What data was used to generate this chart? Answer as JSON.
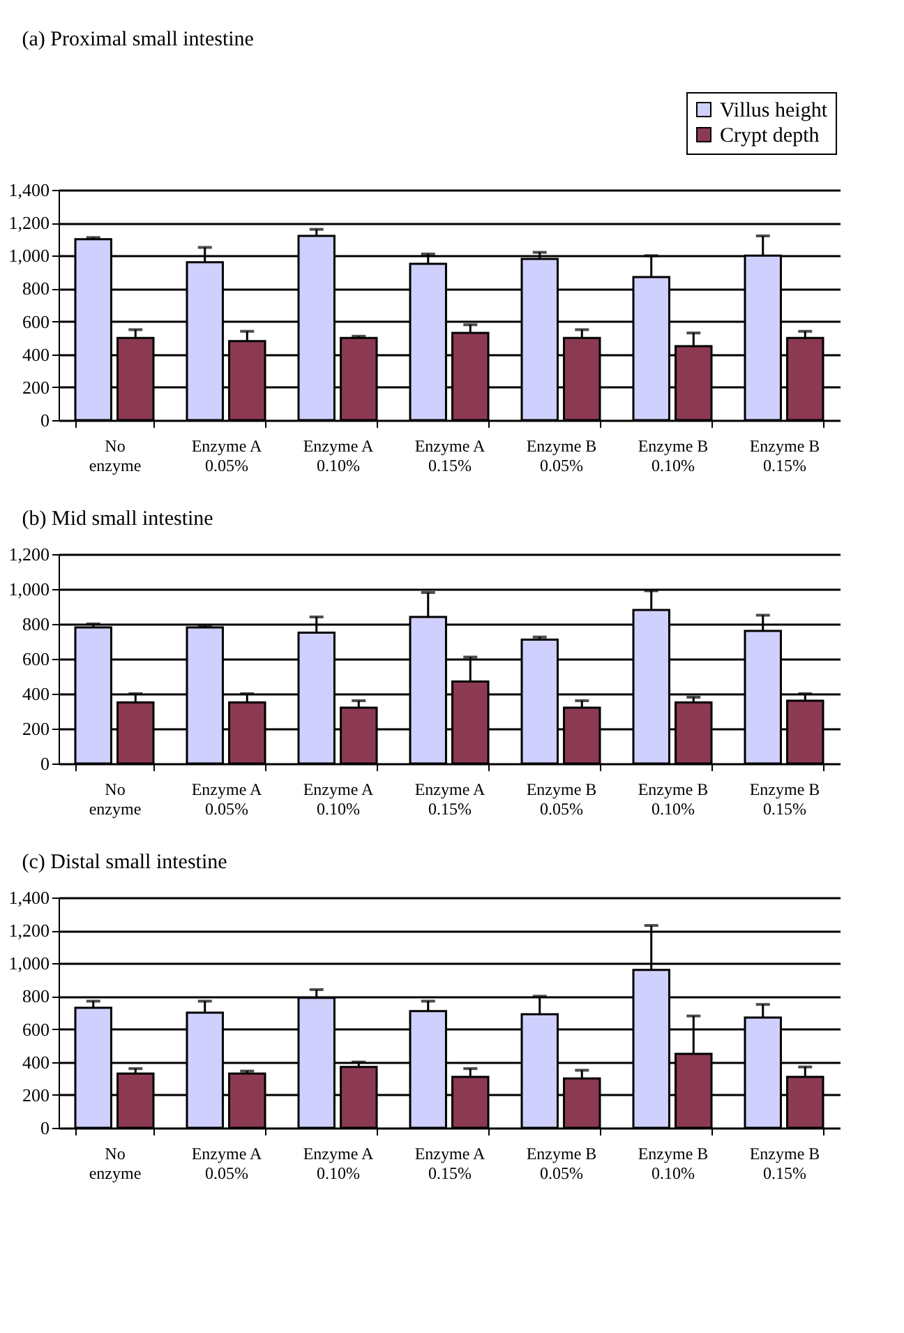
{
  "chart_data": [
    {
      "type": "bar",
      "title": "(a) Proximal small intestine",
      "categories": [
        "No enzyme",
        "Enzyme A 0.05%",
        "Enzyme A 0.10%",
        "Enzyme A 0.15%",
        "Enzyme B 0.05%",
        "Enzyme B 0.10%",
        "Enzyme B 0.15%"
      ],
      "series": [
        {
          "name": "Villus height",
          "color": "#d0d0ff",
          "values": [
            1100,
            960,
            1120,
            950,
            980,
            870,
            1000
          ],
          "errors": [
            [
              1100,
              1110
            ],
            [
              960,
              1050
            ],
            [
              1120,
              1160
            ],
            [
              950,
              1010
            ],
            [
              980,
              1020
            ],
            [
              870,
              1000
            ],
            [
              1000,
              1120
            ]
          ]
        },
        {
          "name": "Crypt depth",
          "color": "#8b3a52",
          "values": [
            500,
            480,
            500,
            530,
            500,
            450,
            500
          ],
          "errors": [
            [
              500,
              550
            ],
            [
              480,
              540
            ],
            [
              500,
              510
            ],
            [
              530,
              580
            ],
            [
              500,
              550
            ],
            [
              450,
              530
            ],
            [
              500,
              540
            ]
          ]
        }
      ],
      "ylim": [
        0,
        1400
      ],
      "yticks": [
        {
          "value": 0,
          "label": "0"
        },
        {
          "value": 200,
          "label": "200"
        },
        {
          "value": 400,
          "label": "400"
        },
        {
          "value": 600,
          "label": "600"
        },
        {
          "value": 800,
          "label": "800"
        },
        {
          "value": 1000,
          "label": "1,000"
        },
        {
          "value": 1200,
          "label": "1,200"
        },
        {
          "value": 1400,
          "label": "1,400"
        }
      ],
      "grid": "y",
      "legend": "top right"
    },
    {
      "type": "bar",
      "title": "(b) Mid small intestine",
      "categories": [
        "No enzyme",
        "Enzyme A 0.05%",
        "Enzyme A 0.10%",
        "Enzyme A 0.15%",
        "Enzyme B 0.05%",
        "Enzyme B 0.10%",
        "Enzyme B 0.15%"
      ],
      "series": [
        {
          "color": "#d0d0ff",
          "values": [
            780,
            780,
            750,
            840,
            710,
            880,
            760
          ],
          "errors": [
            [
              780,
              800
            ],
            [
              780,
              790
            ],
            [
              750,
              840
            ],
            [
              840,
              980
            ],
            [
              710,
              725
            ],
            [
              880,
              990
            ],
            [
              760,
              850
            ]
          ]
        },
        {
          "color": "#8b3a52",
          "values": [
            350,
            350,
            320,
            470,
            320,
            350,
            360
          ],
          "errors": [
            [
              350,
              400
            ],
            [
              350,
              400
            ],
            [
              320,
              360
            ],
            [
              470,
              610
            ],
            [
              320,
              360
            ],
            [
              350,
              380
            ],
            [
              360,
              400
            ]
          ]
        }
      ],
      "ylim": [
        0,
        1200
      ],
      "yticks": [
        {
          "value": 0,
          "label": "0"
        },
        {
          "value": 200,
          "label": "200"
        },
        {
          "value": 400,
          "label": "400"
        },
        {
          "value": 600,
          "label": "600"
        },
        {
          "value": 800,
          "label": "800"
        },
        {
          "value": 1000,
          "label": "1,000"
        },
        {
          "value": 1200,
          "label": "1,200"
        }
      ],
      "grid": "y"
    },
    {
      "type": "bar",
      "title": "(c) Distal small intestine",
      "categories": [
        "No enzyme",
        "Enzyme A 0.05%",
        "Enzyme A 0.10%",
        "Enzyme A 0.15%",
        "Enzyme B 0.05%",
        "Enzyme B 0.10%",
        "Enzyme B 0.15%"
      ],
      "series": [
        {
          "color": "#d0d0ff",
          "values": [
            730,
            700,
            790,
            710,
            690,
            960,
            670
          ],
          "errors": [
            [
              730,
              770
            ],
            [
              700,
              770
            ],
            [
              790,
              840
            ],
            [
              710,
              770
            ],
            [
              690,
              800
            ],
            [
              960,
              1230
            ],
            [
              670,
              750
            ]
          ]
        },
        {
          "color": "#8b3a52",
          "values": [
            330,
            330,
            370,
            310,
            300,
            450,
            310
          ],
          "errors": [
            [
              330,
              360
            ],
            [
              330,
              345
            ],
            [
              370,
              400
            ],
            [
              310,
              360
            ],
            [
              300,
              350
            ],
            [
              450,
              680
            ],
            [
              310,
              370
            ]
          ]
        }
      ],
      "ylim": [
        0,
        1400
      ],
      "yticks": [
        {
          "value": 0,
          "label": "0"
        },
        {
          "value": 200,
          "label": "200"
        },
        {
          "value": 400,
          "label": "400"
        },
        {
          "value": 600,
          "label": "600"
        },
        {
          "value": 800,
          "label": "800"
        },
        {
          "value": 1000,
          "label": "1,000"
        },
        {
          "value": 1200,
          "label": "1,200"
        },
        {
          "value": 1400,
          "label": "1,400"
        }
      ],
      "grid": "y"
    }
  ]
}
